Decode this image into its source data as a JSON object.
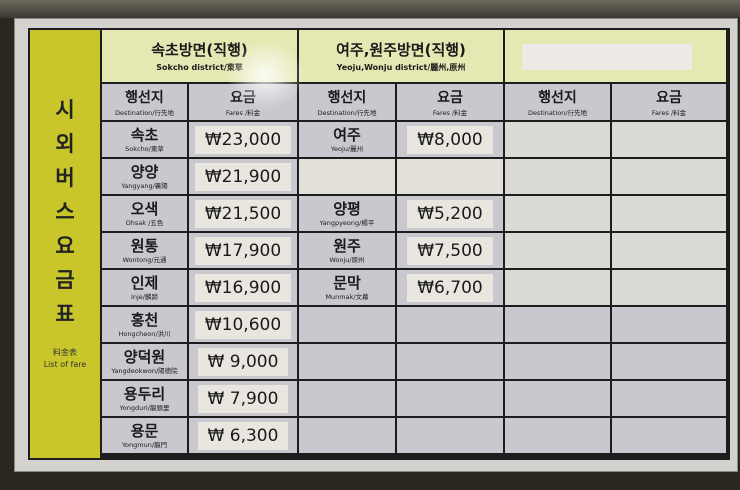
{
  "side_title": [
    "시",
    "외",
    "버",
    "스",
    "요",
    "금",
    "표"
  ],
  "side_sub": {
    "hanja": "料金表",
    "english": "List of fare"
  },
  "sections": [
    {
      "title": "속초방면(직행)",
      "subtitle": "Sokcho district/東草"
    },
    {
      "title": "여주,원주방면(직행)",
      "subtitle": "Yeoju,Wonju district/麗州,原州"
    },
    {
      "title": "",
      "subtitle": ""
    }
  ],
  "col_headers": {
    "dest": "행선지",
    "dest_en": "Destination/行先地",
    "fare": "요금",
    "fare_en": "Fares /料金"
  },
  "rows": [
    [
      {
        "k": "속초",
        "e": "Sokcho/東草",
        "f": "₩23,000"
      },
      {
        "k": "여주",
        "e": "Yeoju/麗州",
        "f": "₩8,000"
      }
    ],
    [
      {
        "k": "양양",
        "e": "Yangyang/襄陽",
        "f": "₩21,900"
      },
      {
        "k": "",
        "e": "",
        "f": ""
      }
    ],
    [
      {
        "k": "오색",
        "e": "Ohsak /五色",
        "f": "₩21,500"
      },
      {
        "k": "양평",
        "e": "Yangpyeong/楊平",
        "f": "₩5,200"
      }
    ],
    [
      {
        "k": "원통",
        "e": "Wontong/元通",
        "f": "₩17,900"
      },
      {
        "k": "원주",
        "e": "Wonju/原州",
        "f": "₩7,500"
      }
    ],
    [
      {
        "k": "인제",
        "e": "Inje/麟蹄",
        "f": "₩16,900"
      },
      {
        "k": "문막",
        "e": "Munmak/文幕",
        "f": "₩6,700"
      }
    ],
    [
      {
        "k": "홍천",
        "e": "Hongcheon/洪川",
        "f": "₩10,600"
      },
      {
        "k": "",
        "e": "",
        "f": ""
      }
    ],
    [
      {
        "k": "양덕원",
        "e": "Yangdeokwon/陽德院",
        "f": "₩  9,000"
      },
      {
        "k": "",
        "e": "",
        "f": ""
      }
    ],
    [
      {
        "k": "용두리",
        "e": "Yongduri/龍頭里",
        "f": "₩  7,900"
      },
      {
        "k": "",
        "e": "",
        "f": ""
      }
    ],
    [
      {
        "k": "용문",
        "e": "Yongmun/龍門",
        "f": "₩  6,300"
      },
      {
        "k": "",
        "e": "",
        "f": ""
      }
    ]
  ],
  "colors": {
    "side": "#c8c62a",
    "header": "#e6e8b4",
    "cell": "#c9c8cf"
  }
}
